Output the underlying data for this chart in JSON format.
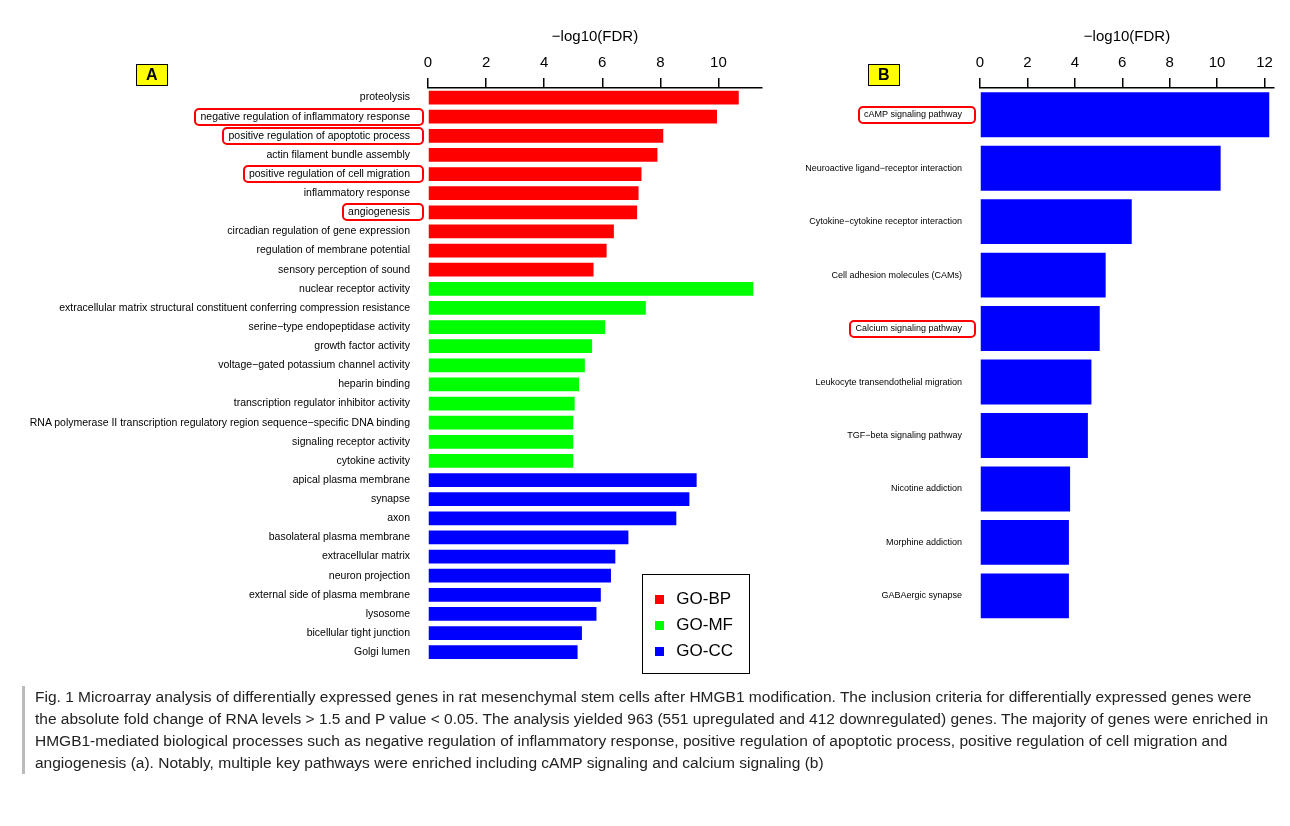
{
  "chart_data": [
    {
      "type": "bar",
      "orientation": "horizontal",
      "xlabel": "−log10(FDR)",
      "xlim": [
        0,
        11.5
      ],
      "xticks": [
        0,
        2,
        4,
        6,
        8,
        10
      ],
      "grid": false,
      "legend": "bottom right",
      "categories": [
        "proteolysis",
        "negative regulation of inflammatory response",
        "positive regulation of apoptotic process",
        "actin filament bundle assembly",
        "positive regulation of cell migration",
        "inflammatory response",
        "angiogenesis",
        "circadian regulation of gene expression",
        "regulation of membrane potential",
        "sensory perception of sound",
        "nuclear receptor activity",
        "extracellular matrix structural constituent conferring compression resistance",
        "serine−type endopeptidase activity",
        "growth factor activity",
        "voltage−gated potassium channel activity",
        "heparin binding",
        "transcription regulator inhibitor activity",
        "RNA polymerase II transcription regulatory region sequence−specific DNA binding",
        "signaling receptor activity",
        "cytokine activity",
        "apical plasma membrane",
        "synapse",
        "axon",
        "basolateral plasma membrane",
        "extracellular matrix",
        "neuron projection",
        "external side of plasma membrane",
        "lysosome",
        "bicellular tight junction",
        "Golgi lumen"
      ],
      "series": [
        {
          "name": "GO-BP",
          "color": "#ff0000",
          "values": [
            10.7,
            9.95,
            8.1,
            7.9,
            7.35,
            7.25,
            7.2,
            6.4,
            6.15,
            5.7,
            null,
            null,
            null,
            null,
            null,
            null,
            null,
            null,
            null,
            null,
            null,
            null,
            null,
            null,
            null,
            null,
            null,
            null,
            null,
            null
          ]
        },
        {
          "name": "GO-MF",
          "color": "#00ff00",
          "values": [
            null,
            null,
            null,
            null,
            null,
            null,
            null,
            null,
            null,
            null,
            11.2,
            7.5,
            6.1,
            5.65,
            5.4,
            5.2,
            5.05,
            5.0,
            5.0,
            5.0,
            null,
            null,
            null,
            null,
            null,
            null,
            null,
            null,
            null,
            null
          ]
        },
        {
          "name": "GO-CC",
          "color": "#0000ff",
          "values": [
            null,
            null,
            null,
            null,
            null,
            null,
            null,
            null,
            null,
            null,
            null,
            null,
            null,
            null,
            null,
            null,
            null,
            null,
            null,
            null,
            9.25,
            9.0,
            8.55,
            6.9,
            6.45,
            6.3,
            5.95,
            5.8,
            5.3,
            5.15
          ]
        }
      ],
      "annotations": [
        "A",
        "Fig. 1  Microarray analysis of differentially expressed genes in rat mesenchymal stem cells after HMGB1 modification. The inclusion criteria for differentially expressed genes were the absolute fold change of RNA levels > 1.5 and P value < 0.05. The analysis yielded 963 (551 upregulated and 412 downregulated) genes. The majority of genes were enriched in HMGB1-mediated biological processes such as negative regulation of inflammatory response, positive regulation of apoptotic process, positive regulation of cell migration and angiogenesis (a). Notably, multiple key pathways were enriched including cAMP signaling and calcium signaling (b)"
      ]
    },
    {
      "type": "bar",
      "orientation": "horizontal",
      "xlabel": "−log10(FDR)",
      "xlim": [
        0,
        12.4
      ],
      "xticks": [
        0,
        2,
        4,
        6,
        8,
        10,
        12
      ],
      "grid": false,
      "color": "#0000ff",
      "categories": [
        "cAMP signaling pathway",
        "Neuroactive ligand−receptor interaction",
        "Cytokine−cytokine receptor interaction",
        "Cell adhesion molecules (CAMs)",
        "Calcium signaling pathway",
        "Leukocyte transendothelial migration",
        "TGF−beta signaling pathway",
        "Nicotine addiction",
        "Morphine addiction",
        "GABAergic synapse"
      ],
      "values": [
        12.2,
        10.15,
        6.4,
        5.3,
        5.05,
        4.7,
        4.55,
        3.8,
        3.75,
        3.75
      ],
      "annotations": [
        "B"
      ]
    }
  ]
}
